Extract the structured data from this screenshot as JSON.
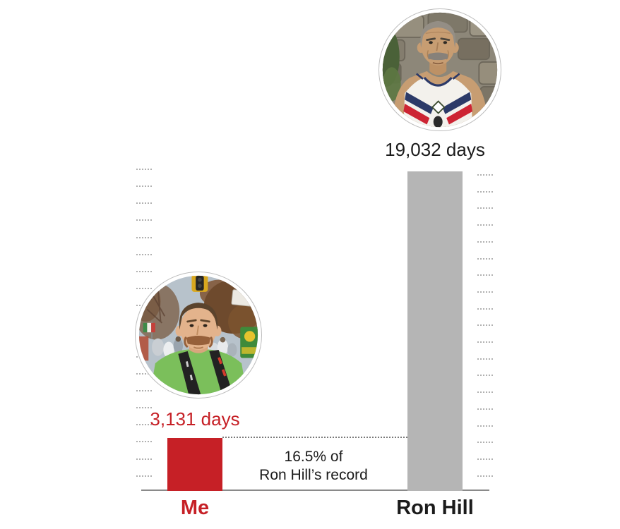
{
  "chart_data": {
    "type": "bar",
    "title": "",
    "categories": [
      "Me",
      "Ron Hill"
    ],
    "values": [
      3131,
      19032
    ],
    "unit": "days",
    "series": [
      {
        "name": "Me",
        "value": 3131,
        "value_label": "3,131 days",
        "bar_color": "#c62026",
        "label_color": "#c62026",
        "avatar": "me-photo"
      },
      {
        "name": "Ron Hill",
        "value": 19032,
        "value_label": "19,032 days",
        "bar_color": "#b5b5b5",
        "label_color": "#1b1b1b",
        "avatar": "ron-hill-photo"
      }
    ],
    "annotation": {
      "line1": "16.5% of",
      "line2": "Ron Hill’s record"
    },
    "ylim": [
      0,
      19032
    ],
    "xlabel": "",
    "ylabel": "",
    "legend": "none",
    "grid": "dotted tick columns on left and right sides, dotted connector at top of Me bar",
    "accent_color": "#c62026",
    "neutral_color": "#b5b5b5"
  }
}
